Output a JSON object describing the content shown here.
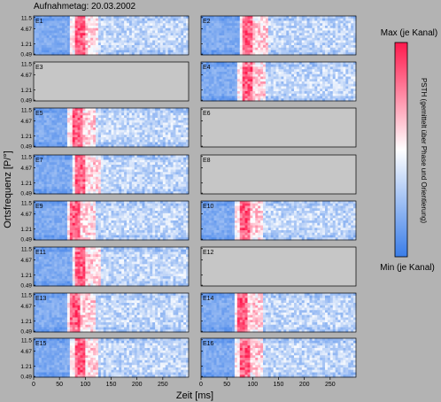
{
  "header": {
    "title": "Aufnahmetag: 20.03.2002"
  },
  "chart_data": {
    "type": "heatmap",
    "title": "Aufnahmetag: 20.03.2002",
    "xlabel": "Zeit [ms]",
    "ylabel": "Ortsfrequenz [P/°]",
    "xlim": [
      0,
      300
    ],
    "x_ticks": [
      0,
      50,
      100,
      150,
      200,
      250
    ],
    "x_tick_labels": [
      "0",
      "50",
      "100",
      "150",
      "200",
      "250"
    ],
    "y_tick_labels": [
      "11.5",
      "4.67",
      "1.21",
      "0.49"
    ],
    "colorbar": {
      "label": "PSTH (gemittelt über Phase und Orientierung)",
      "max_label": "Max (je Kanal)",
      "min_label": "Min (je Kanal)",
      "colors": [
        "#3a7de8",
        "#ffffff",
        "#ff1a4d"
      ]
    },
    "panels": [
      {
        "name": "E1",
        "has_data": true,
        "latency_ms": 85
      },
      {
        "name": "E2",
        "has_data": true,
        "latency_ms": 88
      },
      {
        "name": "E3",
        "has_data": false
      },
      {
        "name": "E4",
        "has_data": true,
        "latency_ms": 85
      },
      {
        "name": "E5",
        "has_data": true,
        "latency_ms": 80
      },
      {
        "name": "E6",
        "has_data": false
      },
      {
        "name": "E7",
        "has_data": true,
        "latency_ms": 88
      },
      {
        "name": "E8",
        "has_data": false
      },
      {
        "name": "E9",
        "has_data": true,
        "latency_ms": 78
      },
      {
        "name": "E10",
        "has_data": true,
        "latency_ms": 80
      },
      {
        "name": "E11",
        "has_data": true,
        "latency_ms": 88
      },
      {
        "name": "E12",
        "has_data": false
      },
      {
        "name": "E13",
        "has_data": true,
        "latency_ms": 78
      },
      {
        "name": "E14",
        "has_data": true,
        "latency_ms": 78
      },
      {
        "name": "E15",
        "has_data": true,
        "latency_ms": 85
      },
      {
        "name": "E16",
        "has_data": true,
        "latency_ms": 80
      }
    ]
  }
}
